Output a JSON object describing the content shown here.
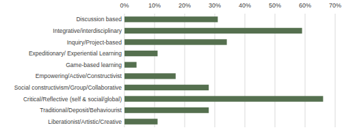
{
  "chart_data": {
    "type": "bar",
    "orientation": "horizontal",
    "categories": [
      "Discussion based",
      "Integrative/interdisciplinary",
      "Inquiry/Project-based",
      "Expeditionary/ Experiential Learning",
      "Game-based learning",
      "Empowering/Active/Constructivist",
      "Social constructivism/Group/Collaborative",
      "Critical/Reflective (self & social/global)",
      "Traditional/Deposit/Behaviourist",
      "Liberationist/Artistic/Creative"
    ],
    "values": [
      31,
      59,
      34,
      11,
      4,
      17,
      28,
      66,
      28,
      11
    ],
    "color": "#55704f",
    "xlim": [
      0,
      70
    ],
    "xticks": [
      {
        "value": 0,
        "label": "0%"
      },
      {
        "value": 10,
        "label": "10%"
      },
      {
        "value": 20,
        "label": "20%"
      },
      {
        "value": 30,
        "label": "30%"
      },
      {
        "value": 40,
        "label": "40%"
      },
      {
        "value": 50,
        "label": "50%"
      },
      {
        "value": 60,
        "label": "60%"
      },
      {
        "value": 70,
        "label": "70%"
      }
    ],
    "grid": true
  }
}
